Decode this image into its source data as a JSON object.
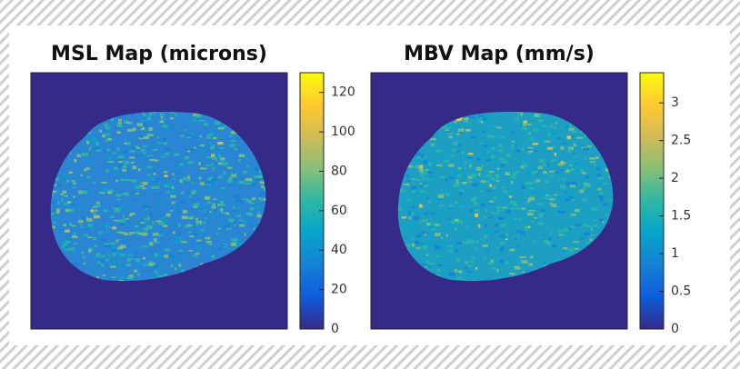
{
  "chart_data": [
    {
      "type": "heatmap",
      "title": "MSL Map (microns)",
      "colormap": "parula",
      "clim": [
        0,
        130
      ],
      "cticks": [
        0,
        20,
        40,
        60,
        80,
        100,
        120
      ]
    },
    {
      "type": "heatmap",
      "title": "MBV Map (mm/s)",
      "colormap": "parula",
      "clim": [
        0,
        3.4
      ],
      "cticks": [
        0,
        0.5,
        1,
        1.5,
        2,
        2.5,
        3
      ]
    }
  ]
}
